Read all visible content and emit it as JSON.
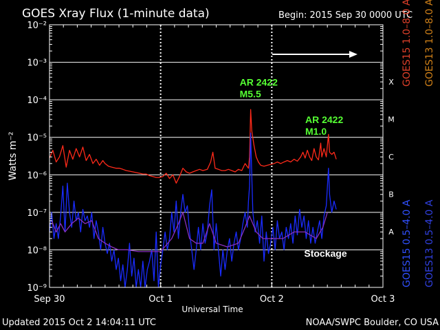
{
  "header": {
    "title": "GOES Xray Flux (1-minute data)",
    "begin": "Begin:  2015 Sep 30 0000 UTC"
  },
  "footer": {
    "updated": "Updated 2015 Oct  2 14:04:11 UTC",
    "credit": "NOAA/SWPC Boulder, CO USA"
  },
  "colors": {
    "background": "#000000",
    "grid": "#ffffff",
    "long_channel": "#ff2a1a",
    "long_channel_label": "#e0402a",
    "goes13_long_label": "#d08018",
    "short_channel": "#1a2cff",
    "short_channel_label": "#3050ff",
    "goes13_short_label": "#3040e0",
    "overlap": "#8a30c0",
    "annotation": "#55ff33"
  },
  "chart_data": {
    "type": "line",
    "ylabel": "Watts m⁻²",
    "xlabel": "Universal Time",
    "yscale": "log",
    "ylim": [
      1e-09,
      0.01
    ],
    "xlim_days": [
      0,
      3
    ],
    "x_ticks": [
      "Sep 30",
      "Oct 1",
      "Oct 2",
      "Oct 3"
    ],
    "y_ticks": [
      "10⁻⁹",
      "10⁻⁸",
      "10⁻⁷",
      "10⁻⁶",
      "10⁻⁵",
      "10⁻⁴",
      "10⁻³",
      "10⁻²"
    ],
    "flare_classes": [
      {
        "label": "A",
        "value": 1e-08
      },
      {
        "label": "B",
        "value": 1e-07
      },
      {
        "label": "C",
        "value": 1e-06
      },
      {
        "label": "M",
        "value": 1e-05
      },
      {
        "label": "X",
        "value": 0.0001
      }
    ],
    "legend": [
      {
        "name": "GOES15 1.0–8.0 A",
        "colorKey": "long_channel_label"
      },
      {
        "name": "GOES13 1.0–8.0 A",
        "colorKey": "goes13_long_label"
      },
      {
        "name": "GOES15 0.5–4.0 A",
        "colorKey": "short_channel_label"
      },
      {
        "name": "GOES13 0.5–4.0 A",
        "colorKey": "goes13_short_label"
      }
    ],
    "annotations": [
      {
        "lines": [
          "AR 2422",
          "M5.5"
        ],
        "day": 1.81,
        "value": 0.00024
      },
      {
        "lines": [
          "AR 2422",
          "M1.0"
        ],
        "day": 2.4,
        "value": 2.4e-05
      },
      {
        "lines": [
          "Stockage"
        ],
        "day": 2.39,
        "value": 6.5e-09,
        "color": "#ffffff"
      }
    ],
    "series": [
      {
        "name": "GOES15 1.0–8.0 A",
        "colorKey": "long_channel",
        "points": [
          [
            0,
            2.8e-06
          ],
          [
            0.03,
            4.5e-06
          ],
          [
            0.06,
            2.2e-06
          ],
          [
            0.09,
            3e-06
          ],
          [
            0.12,
            6e-06
          ],
          [
            0.15,
            1.6e-06
          ],
          [
            0.18,
            4.5e-06
          ],
          [
            0.21,
            2.6e-06
          ],
          [
            0.24,
            5e-06
          ],
          [
            0.27,
            3e-06
          ],
          [
            0.3,
            5.5e-06
          ],
          [
            0.33,
            2.4e-06
          ],
          [
            0.36,
            3.5e-06
          ],
          [
            0.39,
            2e-06
          ],
          [
            0.42,
            2.6e-06
          ],
          [
            0.45,
            1.8e-06
          ],
          [
            0.48,
            2.4e-06
          ],
          [
            0.5,
            2e-06
          ],
          [
            0.53,
            1.7e-06
          ],
          [
            0.56,
            1.6e-06
          ],
          [
            0.6,
            1.5e-06
          ],
          [
            0.63,
            1.5e-06
          ],
          [
            0.66,
            1.4e-06
          ],
          [
            0.69,
            1.3e-06
          ],
          [
            0.72,
            1.25e-06
          ],
          [
            0.75,
            1.2e-06
          ],
          [
            0.78,
            1.15e-06
          ],
          [
            0.81,
            1.1e-06
          ],
          [
            0.84,
            1.05e-06
          ],
          [
            0.87,
            1.05e-06
          ],
          [
            0.9,
            9.5e-07
          ],
          [
            0.93,
            9e-07
          ],
          [
            0.96,
            8.5e-07
          ],
          [
            0.99,
            8.5e-07
          ],
          [
            1.02,
            9e-07
          ],
          [
            1.05,
            1.1e-06
          ],
          [
            1.08,
            8e-07
          ],
          [
            1.11,
            1e-06
          ],
          [
            1.14,
            6e-07
          ],
          [
            1.17,
            9e-07
          ],
          [
            1.2,
            1.5e-06
          ],
          [
            1.23,
            1.2e-06
          ],
          [
            1.26,
            1.1e-06
          ],
          [
            1.29,
            1.2e-06
          ],
          [
            1.32,
            1.3e-06
          ],
          [
            1.35,
            1.4e-06
          ],
          [
            1.38,
            1.3e-06
          ],
          [
            1.42,
            1.4e-06
          ],
          [
            1.45,
            2.2e-06
          ],
          [
            1.47,
            4e-06
          ],
          [
            1.49,
            1.5e-06
          ],
          [
            1.52,
            1.4e-06
          ],
          [
            1.55,
            1.3e-06
          ],
          [
            1.58,
            1.3e-06
          ],
          [
            1.61,
            1.4e-06
          ],
          [
            1.64,
            1.3e-06
          ],
          [
            1.67,
            1.2e-06
          ],
          [
            1.7,
            1.4e-06
          ],
          [
            1.73,
            1.3e-06
          ],
          [
            1.76,
            2e-06
          ],
          [
            1.79,
            1.5e-06
          ],
          [
            1.8,
            3e-06
          ],
          [
            1.81,
            5.5e-05
          ],
          [
            1.82,
            1.5e-05
          ],
          [
            1.84,
            6e-06
          ],
          [
            1.86,
            3e-06
          ],
          [
            1.88,
            2.2e-06
          ],
          [
            1.9,
            1.8e-06
          ],
          [
            1.93,
            1.7e-06
          ],
          [
            1.96,
            1.8e-06
          ],
          [
            1.99,
            1.9e-06
          ],
          [
            2.02,
            2e-06
          ],
          [
            2.05,
            2.2e-06
          ],
          [
            2.08,
            2e-06
          ],
          [
            2.11,
            2.2e-06
          ],
          [
            2.14,
            2.4e-06
          ],
          [
            2.17,
            2.2e-06
          ],
          [
            2.2,
            2.6e-06
          ],
          [
            2.23,
            2.3e-06
          ],
          [
            2.26,
            3e-06
          ],
          [
            2.28,
            4e-06
          ],
          [
            2.3,
            2.8e-06
          ],
          [
            2.32,
            4.5e-06
          ],
          [
            2.34,
            3e-06
          ],
          [
            2.36,
            2.4e-06
          ],
          [
            2.38,
            5e-06
          ],
          [
            2.4,
            3e-06
          ],
          [
            2.42,
            2.5e-06
          ],
          [
            2.44,
            7e-06
          ],
          [
            2.45,
            3e-06
          ],
          [
            2.47,
            5e-06
          ],
          [
            2.49,
            3e-06
          ],
          [
            2.51,
            1.2e-05
          ],
          [
            2.52,
            4e-06
          ],
          [
            2.54,
            3.5e-06
          ],
          [
            2.56,
            4e-06
          ],
          [
            2.58,
            2.6e-06
          ]
        ]
      },
      {
        "name": "GOES15 0.5–4.0 A",
        "colorKey": "short_channel",
        "points": [
          [
            0,
            3e-08
          ],
          [
            0.02,
            1e-07
          ],
          [
            0.04,
            2e-08
          ],
          [
            0.06,
            5e-08
          ],
          [
            0.08,
            2e-08
          ],
          [
            0.1,
            8e-08
          ],
          [
            0.12,
            5e-07
          ],
          [
            0.14,
            3e-08
          ],
          [
            0.16,
            6e-07
          ],
          [
            0.18,
            1e-07
          ],
          [
            0.2,
            4e-08
          ],
          [
            0.22,
            2e-07
          ],
          [
            0.24,
            6e-08
          ],
          [
            0.26,
            1e-07
          ],
          [
            0.28,
            3e-08
          ],
          [
            0.3,
            1.2e-07
          ],
          [
            0.32,
            6e-08
          ],
          [
            0.34,
            8e-08
          ],
          [
            0.36,
            4e-08
          ],
          [
            0.38,
            1e-07
          ],
          [
            0.4,
            2e-08
          ],
          [
            0.42,
            6e-08
          ],
          [
            0.44,
            3e-08
          ],
          [
            0.46,
            1e-08
          ],
          [
            0.48,
            4e-08
          ],
          [
            0.5,
            1.5e-08
          ],
          [
            0.52,
            8e-09
          ],
          [
            0.54,
            1.5e-08
          ],
          [
            0.56,
            5e-09
          ],
          [
            0.58,
            1e-08
          ],
          [
            0.6,
            3e-09
          ],
          [
            0.62,
            6e-09
          ],
          [
            0.64,
            1.5e-09
          ],
          [
            0.66,
            4e-09
          ],
          [
            0.68,
            1e-09
          ],
          [
            0.7,
            3e-09
          ],
          [
            0.72,
            1.5e-08
          ],
          [
            0.74,
            2e-09
          ],
          [
            0.76,
            6e-09
          ],
          [
            0.78,
            1e-09
          ],
          [
            0.8,
            3e-09
          ],
          [
            0.82,
            1e-09
          ],
          [
            0.84,
            5e-09
          ],
          [
            0.86,
            1e-09
          ],
          [
            0.88,
            3e-09
          ],
          [
            0.9,
            5e-09
          ],
          [
            0.92,
            1e-08
          ],
          [
            0.94,
            1.5e-09
          ],
          [
            0.96,
            3e-08
          ],
          [
            0.98,
            1e-09
          ],
          [
            1,
            4e-09
          ],
          [
            1.02,
            1e-08
          ],
          [
            1.04,
            3e-08
          ],
          [
            1.06,
            1e-08
          ],
          [
            1.08,
            2e-08
          ],
          [
            1.1,
            1e-07
          ],
          [
            1.12,
            3e-08
          ],
          [
            1.14,
            2e-07
          ],
          [
            1.16,
            2e-08
          ],
          [
            1.18,
            1e-07
          ],
          [
            1.2,
            3e-07
          ],
          [
            1.22,
            1e-07
          ],
          [
            1.24,
            1.5e-07
          ],
          [
            1.26,
            3e-08
          ],
          [
            1.28,
            1e-08
          ],
          [
            1.3,
            3e-09
          ],
          [
            1.32,
            1e-08
          ],
          [
            1.34,
            4e-08
          ],
          [
            1.36,
            1e-08
          ],
          [
            1.38,
            5e-08
          ],
          [
            1.4,
            1.5e-08
          ],
          [
            1.42,
            3e-08
          ],
          [
            1.44,
            1.5e-07
          ],
          [
            1.46,
            4e-07
          ],
          [
            1.48,
            1e-08
          ],
          [
            1.5,
            5e-08
          ],
          [
            1.52,
            1e-08
          ],
          [
            1.54,
            2e-09
          ],
          [
            1.56,
            1e-08
          ],
          [
            1.58,
            3e-09
          ],
          [
            1.6,
            1e-08
          ],
          [
            1.62,
            2e-08
          ],
          [
            1.64,
            5e-09
          ],
          [
            1.66,
            1.5e-08
          ],
          [
            1.68,
            3e-08
          ],
          [
            1.7,
            1e-08
          ],
          [
            1.72,
            2e-08
          ],
          [
            1.74,
            5e-08
          ],
          [
            1.76,
            1e-07
          ],
          [
            1.78,
            4e-08
          ],
          [
            1.79,
            2e-07
          ],
          [
            1.8,
            5e-07
          ],
          [
            1.81,
            1.3e-05
          ],
          [
            1.82,
            1e-06
          ],
          [
            1.83,
            1e-07
          ],
          [
            1.85,
            3e-08
          ],
          [
            1.87,
            6e-08
          ],
          [
            1.89,
            1.5e-08
          ],
          [
            1.91,
            8e-08
          ],
          [
            1.93,
            5e-09
          ],
          [
            1.95,
            3e-08
          ],
          [
            1.97,
            8e-09
          ],
          [
            1.99,
            1.5e-08
          ],
          [
            2.01,
            4e-08
          ],
          [
            2.03,
            1e-08
          ],
          [
            2.05,
            6e-08
          ],
          [
            2.07,
            2e-08
          ],
          [
            2.09,
            3e-08
          ],
          [
            2.11,
            1e-08
          ],
          [
            2.13,
            4e-08
          ],
          [
            2.15,
            2e-08
          ],
          [
            2.17,
            5e-08
          ],
          [
            2.19,
            1.5e-08
          ],
          [
            2.21,
            8e-08
          ],
          [
            2.23,
            2.5e-08
          ],
          [
            2.25,
            1.2e-07
          ],
          [
            2.27,
            4e-08
          ],
          [
            2.29,
            8e-08
          ],
          [
            2.31,
            2e-08
          ],
          [
            2.33,
            6e-08
          ],
          [
            2.35,
            1.5e-08
          ],
          [
            2.37,
            4e-08
          ],
          [
            2.39,
            1.5e-08
          ],
          [
            2.41,
            3e-08
          ],
          [
            2.43,
            6e-08
          ],
          [
            2.45,
            2e-08
          ],
          [
            2.47,
            8e-08
          ],
          [
            2.49,
            1.5e-07
          ],
          [
            2.51,
            1.5e-06
          ],
          [
            2.52,
            3e-07
          ],
          [
            2.54,
            1e-07
          ],
          [
            2.56,
            2e-07
          ],
          [
            2.58,
            1.2e-07
          ]
        ]
      },
      {
        "name": "GOES13 0.5–4.0 A",
        "colorKey": "overlap",
        "points": [
          [
            0.02,
            6e-08
          ],
          [
            0.06,
            3e-08
          ],
          [
            0.1,
            5e-08
          ],
          [
            0.14,
            3e-08
          ],
          [
            0.2,
            5e-08
          ],
          [
            0.26,
            7e-08
          ],
          [
            0.32,
            5e-08
          ],
          [
            0.38,
            6e-08
          ],
          [
            0.44,
            2e-08
          ],
          [
            0.5,
            1.5e-08
          ],
          [
            0.56,
            1.2e-08
          ],
          [
            0.62,
            1e-08
          ],
          [
            0.7,
            1e-08
          ],
          [
            0.8,
            9e-09
          ],
          [
            0.9,
            9e-09
          ],
          [
            1,
            9e-09
          ],
          [
            1.1,
            2e-08
          ],
          [
            1.16,
            5e-08
          ],
          [
            1.2,
            1e-07
          ],
          [
            1.26,
            2e-08
          ],
          [
            1.32,
            1.5e-08
          ],
          [
            1.38,
            1.5e-08
          ],
          [
            1.44,
            5e-08
          ],
          [
            1.5,
            1.5e-08
          ],
          [
            1.6,
            1.2e-08
          ],
          [
            1.7,
            1.5e-08
          ],
          [
            1.76,
            4e-08
          ],
          [
            1.8,
            8e-08
          ],
          [
            1.86,
            3e-08
          ],
          [
            1.92,
            2e-08
          ],
          [
            2,
            2e-08
          ],
          [
            2.1,
            2e-08
          ],
          [
            2.2,
            3e-08
          ],
          [
            2.3,
            3e-08
          ],
          [
            2.4,
            2e-08
          ],
          [
            2.46,
            4e-08
          ],
          [
            2.5,
            1e-07
          ]
        ]
      }
    ]
  }
}
